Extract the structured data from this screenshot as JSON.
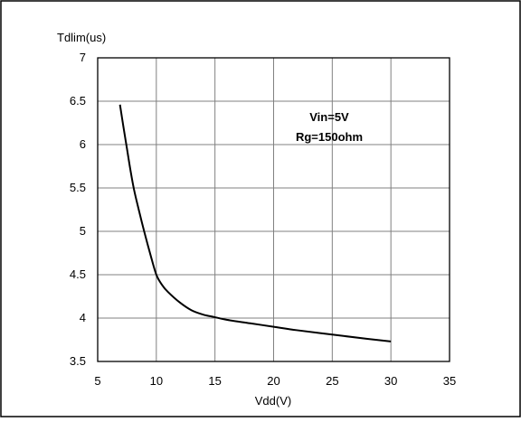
{
  "chart_data": {
    "type": "line",
    "ylabel": "Tdlim(us)",
    "xlabel": "Vdd(V)",
    "xlim": [
      5,
      35
    ],
    "ylim": [
      3.5,
      7
    ],
    "xticks": [
      5,
      10,
      15,
      20,
      25,
      30,
      35
    ],
    "yticks": [
      3.5,
      4,
      4.5,
      5,
      5.5,
      6,
      6.5,
      7
    ],
    "grid": true,
    "legend": "none",
    "annotations": [
      "Vin=5V",
      "Rg=150ohm"
    ],
    "series": [
      {
        "x": [
          6.9,
          7.2,
          7.5,
          7.8,
          8.1,
          8.5,
          9.0,
          9.5,
          10.0,
          10.5,
          11.0,
          12.0,
          13.0,
          14.0,
          15.0,
          16.0,
          18.0,
          20.0,
          22.0,
          25.0,
          28.0,
          30.0
        ],
        "y": [
          6.46,
          6.2,
          5.95,
          5.7,
          5.48,
          5.25,
          4.98,
          4.73,
          4.5,
          4.38,
          4.3,
          4.18,
          4.09,
          4.04,
          4.01,
          3.98,
          3.94,
          3.9,
          3.86,
          3.81,
          3.76,
          3.73
        ]
      }
    ]
  }
}
